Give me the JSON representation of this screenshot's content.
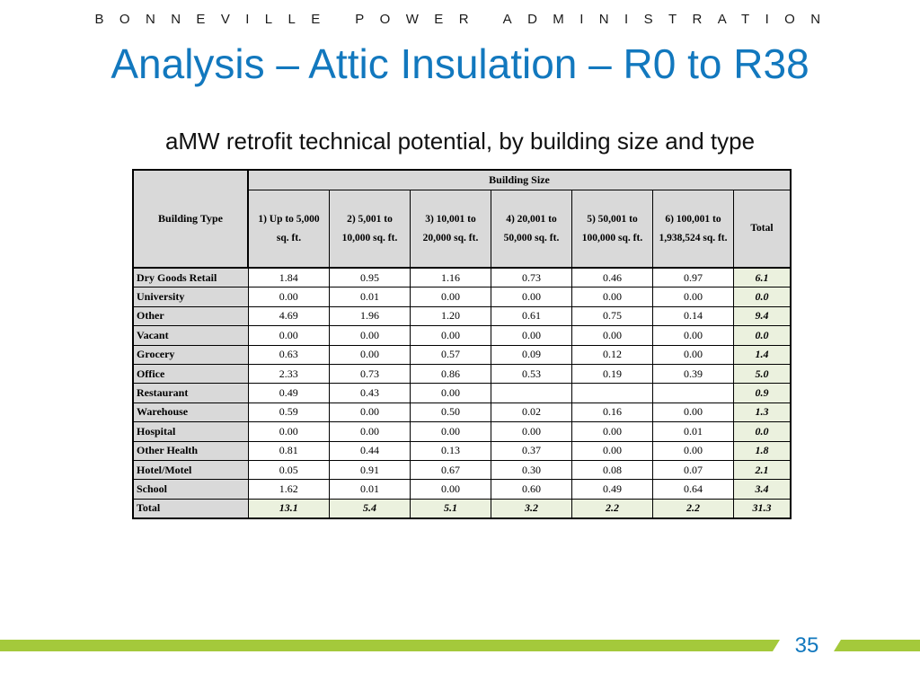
{
  "header": {
    "org": "BONNEVILLE POWER ADMINISTRATION",
    "title": "Analysis – Attic Insulation – R0 to R38",
    "subtitle": "aMW retrofit technical potential, by building size and type"
  },
  "table": {
    "corner_header": "Building Type",
    "group_header": "Building Size",
    "columns": [
      "1) Up to 5,000 sq. ft.",
      "2) 5,001 to 10,000 sq. ft.",
      "3) 10,001 to 20,000 sq. ft.",
      "4) 20,001 to 50,000 sq. ft.",
      "5) 50,001 to 100,000 sq. ft.",
      "6) 100,001 to 1,938,524 sq. ft.",
      "Total"
    ],
    "rows": [
      {
        "type": "Dry Goods Retail",
        "values": [
          "1.84",
          "0.95",
          "1.16",
          "0.73",
          "0.46",
          "0.97",
          "6.1"
        ]
      },
      {
        "type": "University",
        "values": [
          "0.00",
          "0.01",
          "0.00",
          "0.00",
          "0.00",
          "0.00",
          "0.0"
        ]
      },
      {
        "type": "Other",
        "values": [
          "4.69",
          "1.96",
          "1.20",
          "0.61",
          "0.75",
          "0.14",
          "9.4"
        ]
      },
      {
        "type": "Vacant",
        "values": [
          "0.00",
          "0.00",
          "0.00",
          "0.00",
          "0.00",
          "0.00",
          "0.0"
        ]
      },
      {
        "type": "Grocery",
        "values": [
          "0.63",
          "0.00",
          "0.57",
          "0.09",
          "0.12",
          "0.00",
          "1.4"
        ]
      },
      {
        "type": "Office",
        "values": [
          "2.33",
          "0.73",
          "0.86",
          "0.53",
          "0.19",
          "0.39",
          "5.0"
        ]
      },
      {
        "type": "Restaurant",
        "values": [
          "0.49",
          "0.43",
          "0.00",
          "",
          "",
          "",
          "0.9"
        ]
      },
      {
        "type": "Warehouse",
        "values": [
          "0.59",
          "0.00",
          "0.50",
          "0.02",
          "0.16",
          "0.00",
          "1.3"
        ]
      },
      {
        "type": "Hospital",
        "values": [
          "0.00",
          "0.00",
          "0.00",
          "0.00",
          "0.00",
          "0.01",
          "0.0"
        ]
      },
      {
        "type": "Other Health",
        "values": [
          "0.81",
          "0.44",
          "0.13",
          "0.37",
          "0.00",
          "0.00",
          "1.8"
        ]
      },
      {
        "type": "Hotel/Motel",
        "values": [
          "0.05",
          "0.91",
          "0.67",
          "0.30",
          "0.08",
          "0.07",
          "2.1"
        ]
      },
      {
        "type": "School",
        "values": [
          "1.62",
          "0.01",
          "0.00",
          "0.60",
          "0.49",
          "0.64",
          "3.4"
        ]
      }
    ],
    "total_row": {
      "type": "Total",
      "values": [
        "13.1",
        "5.4",
        "5.1",
        "3.2",
        "2.2",
        "2.2",
        "31.3"
      ]
    }
  },
  "footer": {
    "page_number": "35",
    "bar_color": "#a4c93b",
    "title_color": "#1278be"
  }
}
